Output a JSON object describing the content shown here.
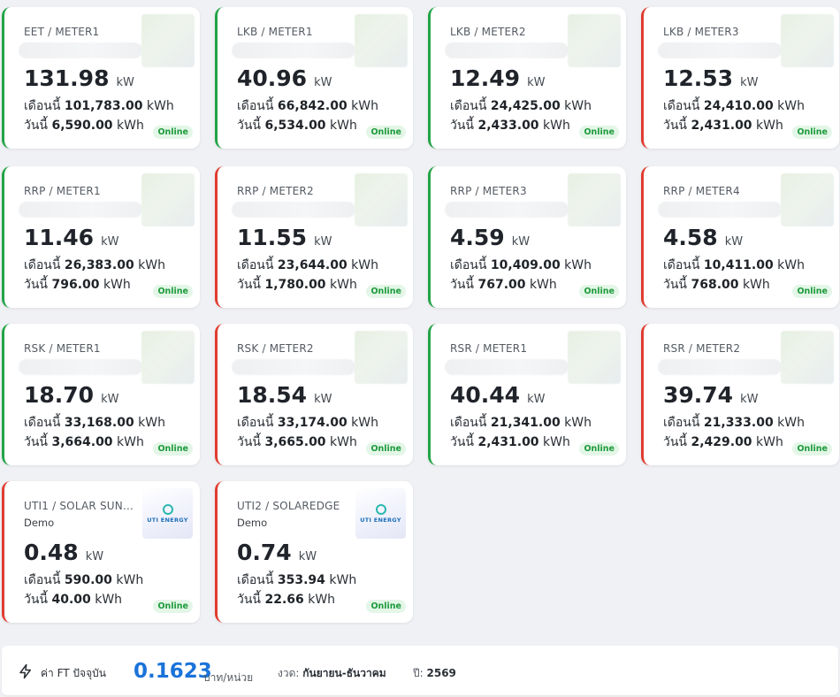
{
  "meters": [
    {
      "title": "EET / METER1",
      "subtitle": "",
      "power": "131.98",
      "unit": "kW",
      "month_label": "เดือนนี้",
      "month_value": "101,783.00",
      "day_label": "วันนี้",
      "day_value": "6,590.00",
      "energy_unit": "kWh",
      "status": "Online",
      "color": "#22a447"
    },
    {
      "title": "LKB / METER1",
      "subtitle": "",
      "power": "40.96",
      "unit": "kW",
      "month_label": "เดือนนี้",
      "month_value": "66,842.00",
      "day_label": "วันนี้",
      "day_value": "6,534.00",
      "energy_unit": "kWh",
      "status": "Online",
      "color": "#22a447"
    },
    {
      "title": "LKB / METER2",
      "subtitle": "",
      "power": "12.49",
      "unit": "kW",
      "month_label": "เดือนนี้",
      "month_value": "24,425.00",
      "day_label": "วันนี้",
      "day_value": "2,433.00",
      "energy_unit": "kWh",
      "status": "Online",
      "color": "#22a447"
    },
    {
      "title": "LKB / METER3",
      "subtitle": "",
      "power": "12.53",
      "unit": "kW",
      "month_label": "เดือนนี้",
      "month_value": "24,410.00",
      "day_label": "วันนี้",
      "day_value": "2,431.00",
      "energy_unit": "kWh",
      "status": "Online",
      "color": "#e03c31"
    },
    {
      "title": "RRP / METER1",
      "subtitle": "",
      "power": "11.46",
      "unit": "kW",
      "month_label": "เดือนนี้",
      "month_value": "26,383.00",
      "day_label": "วันนี้",
      "day_value": "796.00",
      "energy_unit": "kWh",
      "status": "Online",
      "color": "#22a447"
    },
    {
      "title": "RRP / METER2",
      "subtitle": "",
      "power": "11.55",
      "unit": "kW",
      "month_label": "เดือนนี้",
      "month_value": "23,644.00",
      "day_label": "วันนี้",
      "day_value": "1,780.00",
      "energy_unit": "kWh",
      "status": "Online",
      "color": "#e03c31"
    },
    {
      "title": "RRP / METER3",
      "subtitle": "",
      "power": "4.59",
      "unit": "kW",
      "month_label": "เดือนนี้",
      "month_value": "10,409.00",
      "day_label": "วันนี้",
      "day_value": "767.00",
      "energy_unit": "kWh",
      "status": "Online",
      "color": "#22a447"
    },
    {
      "title": "RRP / METER4",
      "subtitle": "",
      "power": "4.58",
      "unit": "kW",
      "month_label": "เดือนนี้",
      "month_value": "10,411.00",
      "day_label": "วันนี้",
      "day_value": "768.00",
      "energy_unit": "kWh",
      "status": "Online",
      "color": "#e03c31"
    },
    {
      "title": "RSK / METER1",
      "subtitle": "",
      "power": "18.70",
      "unit": "kW",
      "month_label": "เดือนนี้",
      "month_value": "33,168.00",
      "day_label": "วันนี้",
      "day_value": "3,664.00",
      "energy_unit": "kWh",
      "status": "Online",
      "color": "#22a447"
    },
    {
      "title": "RSK / METER2",
      "subtitle": "",
      "power": "18.54",
      "unit": "kW",
      "month_label": "เดือนนี้",
      "month_value": "33,174.00",
      "day_label": "วันนี้",
      "day_value": "3,665.00",
      "energy_unit": "kWh",
      "status": "Online",
      "color": "#e03c31"
    },
    {
      "title": "RSR / METER1",
      "subtitle": "",
      "power": "40.44",
      "unit": "kW",
      "month_label": "เดือนนี้",
      "month_value": "21,341.00",
      "day_label": "วันนี้",
      "day_value": "2,431.00",
      "energy_unit": "kWh",
      "status": "Online",
      "color": "#22a447"
    },
    {
      "title": "RSR / METER2",
      "subtitle": "",
      "power": "39.74",
      "unit": "kW",
      "month_label": "เดือนนี้",
      "month_value": "21,333.00",
      "day_label": "วันนี้",
      "day_value": "2,429.00",
      "energy_unit": "kWh",
      "status": "Online",
      "color": "#e03c31"
    },
    {
      "title": "UTI1 / SOLAR SUNG...",
      "subtitle": "Demo",
      "power": "0.48",
      "unit": "kW",
      "month_label": "เดือนนี้",
      "month_value": "590.00",
      "day_label": "วันนี้",
      "day_value": "40.00",
      "energy_unit": "kWh",
      "status": "Online",
      "color": "#e03c31",
      "logo": "UTI ENERGY"
    },
    {
      "title": "UTI2 / SOLAREDGE",
      "subtitle": "Demo",
      "power": "0.74",
      "unit": "kW",
      "month_label": "เดือนนี้",
      "month_value": "353.94",
      "day_label": "วันนี้",
      "day_value": "22.66",
      "energy_unit": "kWh",
      "status": "Online",
      "color": "#e03c31",
      "logo": "UTI ENERGY"
    }
  ],
  "ft": {
    "icon": "lightning-icon",
    "label": "ค่า FT ปัจจุบัน",
    "value": "0.1623",
    "unit": "บาท/หน่วย",
    "period_label": "งวด:",
    "period_value": "กันยายน-ธันวาคม",
    "year_label": "ปี:",
    "year_value": "2569"
  }
}
